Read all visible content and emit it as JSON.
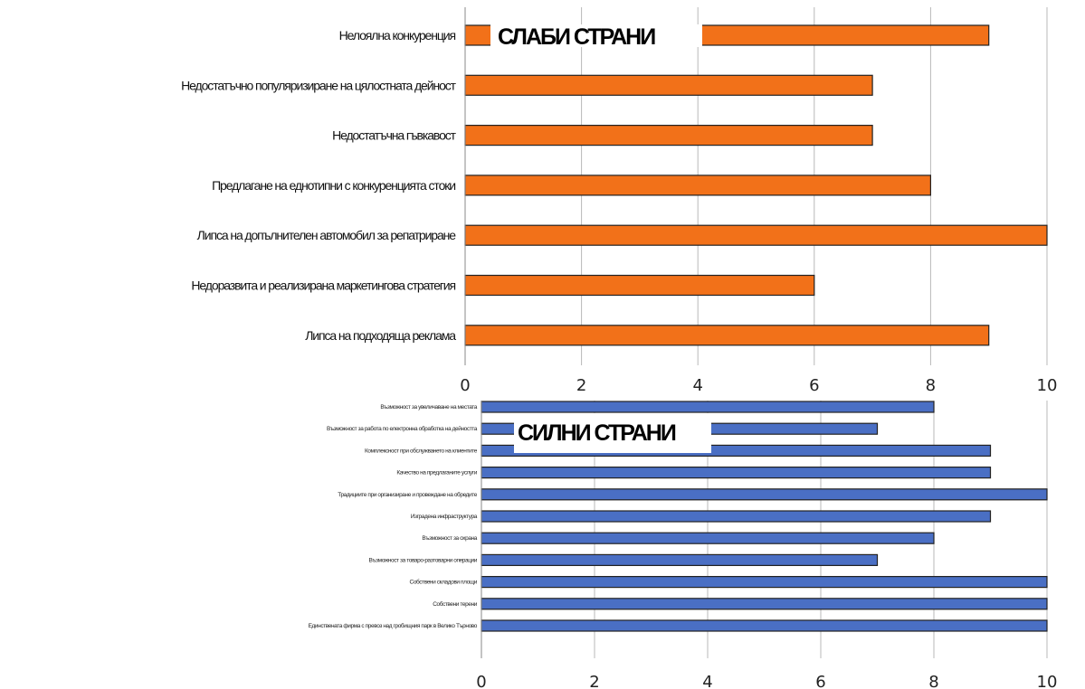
{
  "colors": {
    "weak_bar": "#f27119",
    "strong_bar": "#4a6fc4",
    "bar_stroke": "#222222",
    "grid": "#b8b8b8"
  },
  "chart_data": [
    {
      "type": "bar",
      "orientation": "horizontal",
      "title": "СЛАБИ СТРАНИ",
      "categories": [
        "Нелоялна конкуренция",
        "Недостатъчно популяризиране на цялостната дейност",
        "Недостатъчна гъвкавост",
        "Предлагане на еднотипни с конкуренцията стоки",
        "Липса на допълнителен автомобил за репатриране",
        "Недоразвита и реализирана маркетингова стратегия",
        "Липса на подходяща реклама"
      ],
      "values": [
        9,
        7,
        7,
        8,
        10,
        6,
        9
      ],
      "xlim": [
        0,
        10
      ],
      "xticks": [
        "0",
        "2",
        "4",
        "6",
        "8",
        "10"
      ],
      "grid": true,
      "color": "#f27119"
    },
    {
      "type": "bar",
      "orientation": "horizontal",
      "title": "СИЛНИ СТРАНИ",
      "categories": [
        "Възможност за увеличаване на местата",
        "Възможност за работа по електронна обработка на дейността",
        "Комплексност при обслужването на клиентите",
        "Качество на предлаганите услуги",
        "Традициите при организиране и провеждане на обредите",
        "Изградена инфраструктура",
        "Възможност за охрана",
        "Възможност за товаро-разтоварни операции",
        "Собствени складови площи",
        "Собствени терени",
        "Единствената фирма с превоз над гробищния парк в Велико Търново"
      ],
      "values": [
        8,
        7,
        9,
        9,
        10,
        9,
        8,
        7,
        10,
        10,
        10
      ],
      "xlim": [
        0,
        10
      ],
      "xticks": [
        "0",
        "2",
        "4",
        "6",
        "8",
        "10"
      ],
      "grid": true,
      "color": "#4a6fc4"
    }
  ]
}
